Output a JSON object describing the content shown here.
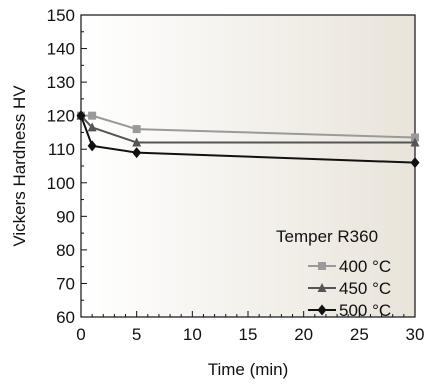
{
  "chart_data": {
    "type": "line",
    "xlabel": "Time (min)",
    "ylabel": "Vickers Hardness HV",
    "xlim": [
      0,
      30
    ],
    "ylim": [
      60,
      150
    ],
    "x_ticks": [
      0,
      5,
      10,
      15,
      20,
      25,
      30
    ],
    "y_ticks": [
      60,
      70,
      80,
      90,
      100,
      110,
      120,
      130,
      140,
      150
    ],
    "grid": false,
    "legend": {
      "title": "Temper R360",
      "placement": "bottom-right"
    },
    "series": [
      {
        "name": "400 °C",
        "marker": "square",
        "color": "#9a9a9a",
        "x": [
          0,
          1,
          5,
          30
        ],
        "y": [
          120,
          120,
          116,
          113.5
        ]
      },
      {
        "name": "450 °C",
        "marker": "triangle",
        "color": "#555555",
        "x": [
          0,
          1,
          5,
          30
        ],
        "y": [
          120,
          116.5,
          112,
          112
        ]
      },
      {
        "name": "500 °C",
        "marker": "diamond",
        "color": "#111111",
        "x": [
          0,
          1,
          5,
          30
        ],
        "y": [
          120,
          111,
          109,
          106
        ]
      }
    ],
    "colors": {
      "plot_background_left": "#ffffff",
      "plot_background_right": "#e9e4da",
      "axis": "#111111"
    }
  }
}
